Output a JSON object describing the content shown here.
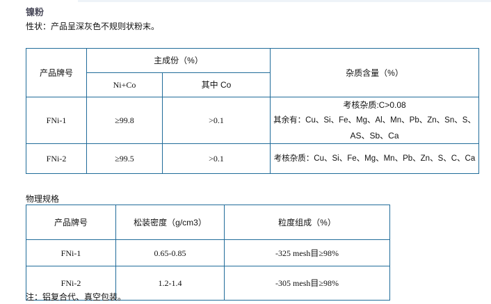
{
  "title": "镍粉",
  "property": "性状：产品呈深灰色不规则状粉末。",
  "table1": {
    "headers": {
      "grade": "产品牌号",
      "main": "主成份（%）",
      "nico": "Ni+Co",
      "co": "其中 Co",
      "impurity": "杂质含量（%）"
    },
    "rows": [
      {
        "grade": "FNi-1",
        "nico": "≥99.8",
        "co": ">0.1",
        "impurity_lines": [
          "考核杂质:C>0.08",
          "其余有：Cu、Si、Fe、Mg、Al、Mn、Pb、Zn、Sn、S、",
          "AS、Sb、Ca"
        ]
      },
      {
        "grade": "FNi-2",
        "nico": "≥99.5",
        "co": ">0.1",
        "impurity_lines": [
          "考核杂质：Cu、Si、Fe、Mg、Mn、Pb、Zn、S、C、Ca"
        ]
      }
    ]
  },
  "physical_title": "物理规格",
  "table2": {
    "headers": [
      "产品牌号",
      "松装密度（g/cm3）",
      "粒度组成（%）"
    ],
    "rows": [
      [
        "FNi-1",
        "0.65-0.85",
        "-325 mesh目≥98%"
      ],
      [
        "FNi-2",
        "1.2-1.4",
        "-305 mesh目≥98%"
      ]
    ]
  },
  "note": "注：铝复合代、真空包装。",
  "colors": {
    "border": "#1f6b99",
    "title": "#4a4a5a"
  }
}
